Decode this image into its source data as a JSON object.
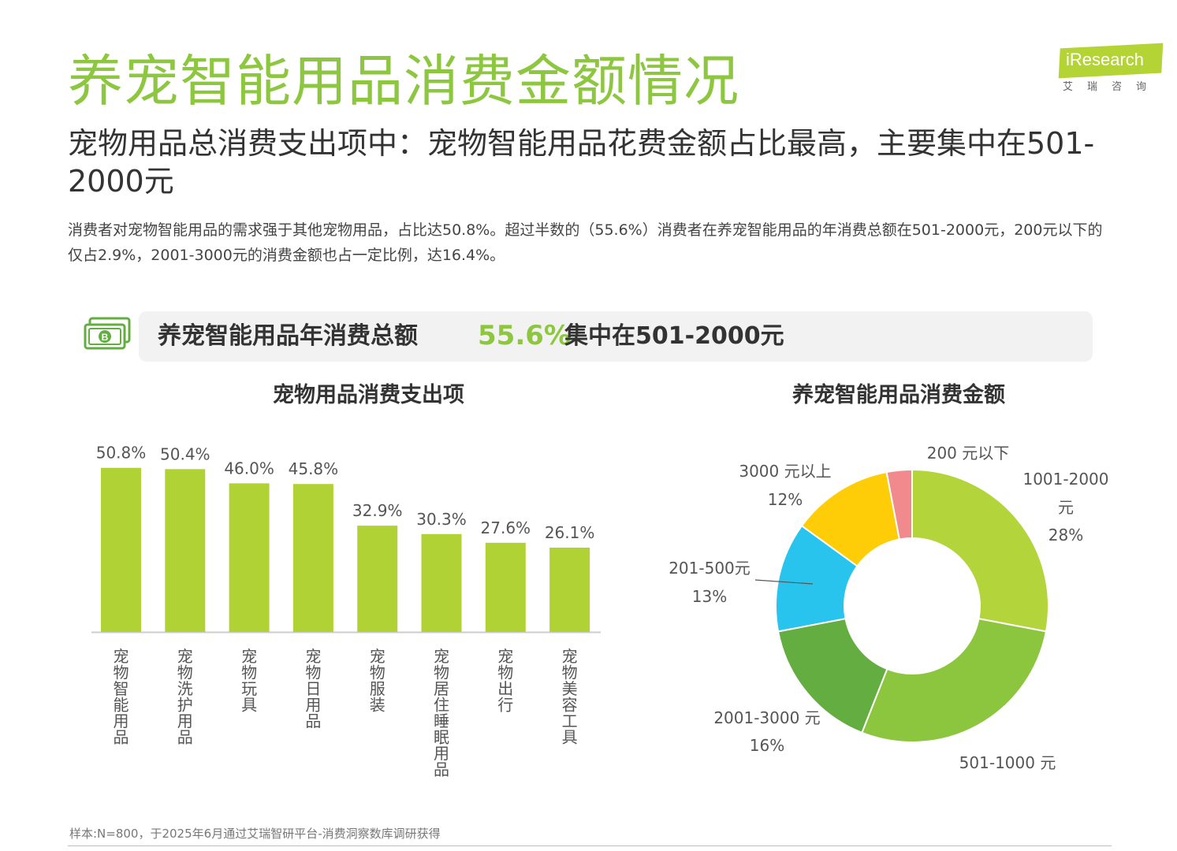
{
  "header": {
    "title": "养宠智能用品消费金额情况",
    "subtitle": "宠物用品总消费支出项中：宠物智能用品花费金额占比最高，主要集中在501-2000元",
    "description": "消费者对宠物智能用品的需求强于其他宠物用品，占比达50.8%。超过半数的（55.6%）消费者在养宠智能用品的年消费总额在501-2000元，200元以下的仅占2.9%，2001-3000元的消费金额也占一定比例，达16.4%。"
  },
  "logo": {
    "brand": "iResearch",
    "subtitle": "艾瑞咨询"
  },
  "banner": {
    "label": "养宠智能用品年消费总额",
    "value": "55.6%",
    "note": "集中在501-2000元",
    "icon": "money-icon"
  },
  "colors": {
    "title_green": "#8dc63f",
    "bar_green": "#b0d235",
    "donut_1001_2000": "#b3d43a",
    "donut_501_1000": "#8cc63e",
    "donut_2001_3000": "#63ad41",
    "donut_201_500": "#29c4ee",
    "donut_3000_plus": "#fecd07",
    "donut_under_200": "#f18a8c"
  },
  "chart_data": [
    {
      "type": "bar",
      "title": "宠物用品消费支出项",
      "categories": [
        "宠物智能用品",
        "宠物洗护用品",
        "宠物玩具",
        "宠物日用品",
        "宠物服装",
        "宠物居住睡眠用品",
        "宠物出行",
        "宠物美容工具"
      ],
      "values": [
        50.8,
        50.4,
        46.0,
        45.8,
        32.9,
        30.3,
        27.6,
        26.1
      ],
      "value_labels": [
        "50.8%",
        "50.4%",
        "46.0%",
        "45.8%",
        "32.9%",
        "30.3%",
        "27.6%",
        "26.1%"
      ],
      "ylim": [
        0,
        55
      ],
      "grid": false,
      "color": "#b0d235"
    },
    {
      "type": "pie",
      "title": "养宠智能用品消费金额",
      "donut": true,
      "slices": [
        {
          "label": "1001-2000元",
          "value": 28,
          "value_label": "28%",
          "color": "#b3d43a"
        },
        {
          "label": "501-1000 元",
          "value": 28,
          "value_label": "",
          "color": "#8cc63e"
        },
        {
          "label": "2001-3000 元",
          "value": 16,
          "value_label": "16%",
          "color": "#63ad41"
        },
        {
          "label": "201-500元",
          "value": 13,
          "value_label": "13%",
          "color": "#29c4ee"
        },
        {
          "label": "3000 元以上",
          "value": 12,
          "value_label": "12%",
          "color": "#fecd07"
        },
        {
          "label": "200 元以下",
          "value": 3,
          "value_label": "",
          "color": "#f18a8c"
        }
      ]
    }
  ],
  "footnote": "样本:N=800，于2025年6月通过艾瑞智研平台-消费洞察数库调研获得"
}
